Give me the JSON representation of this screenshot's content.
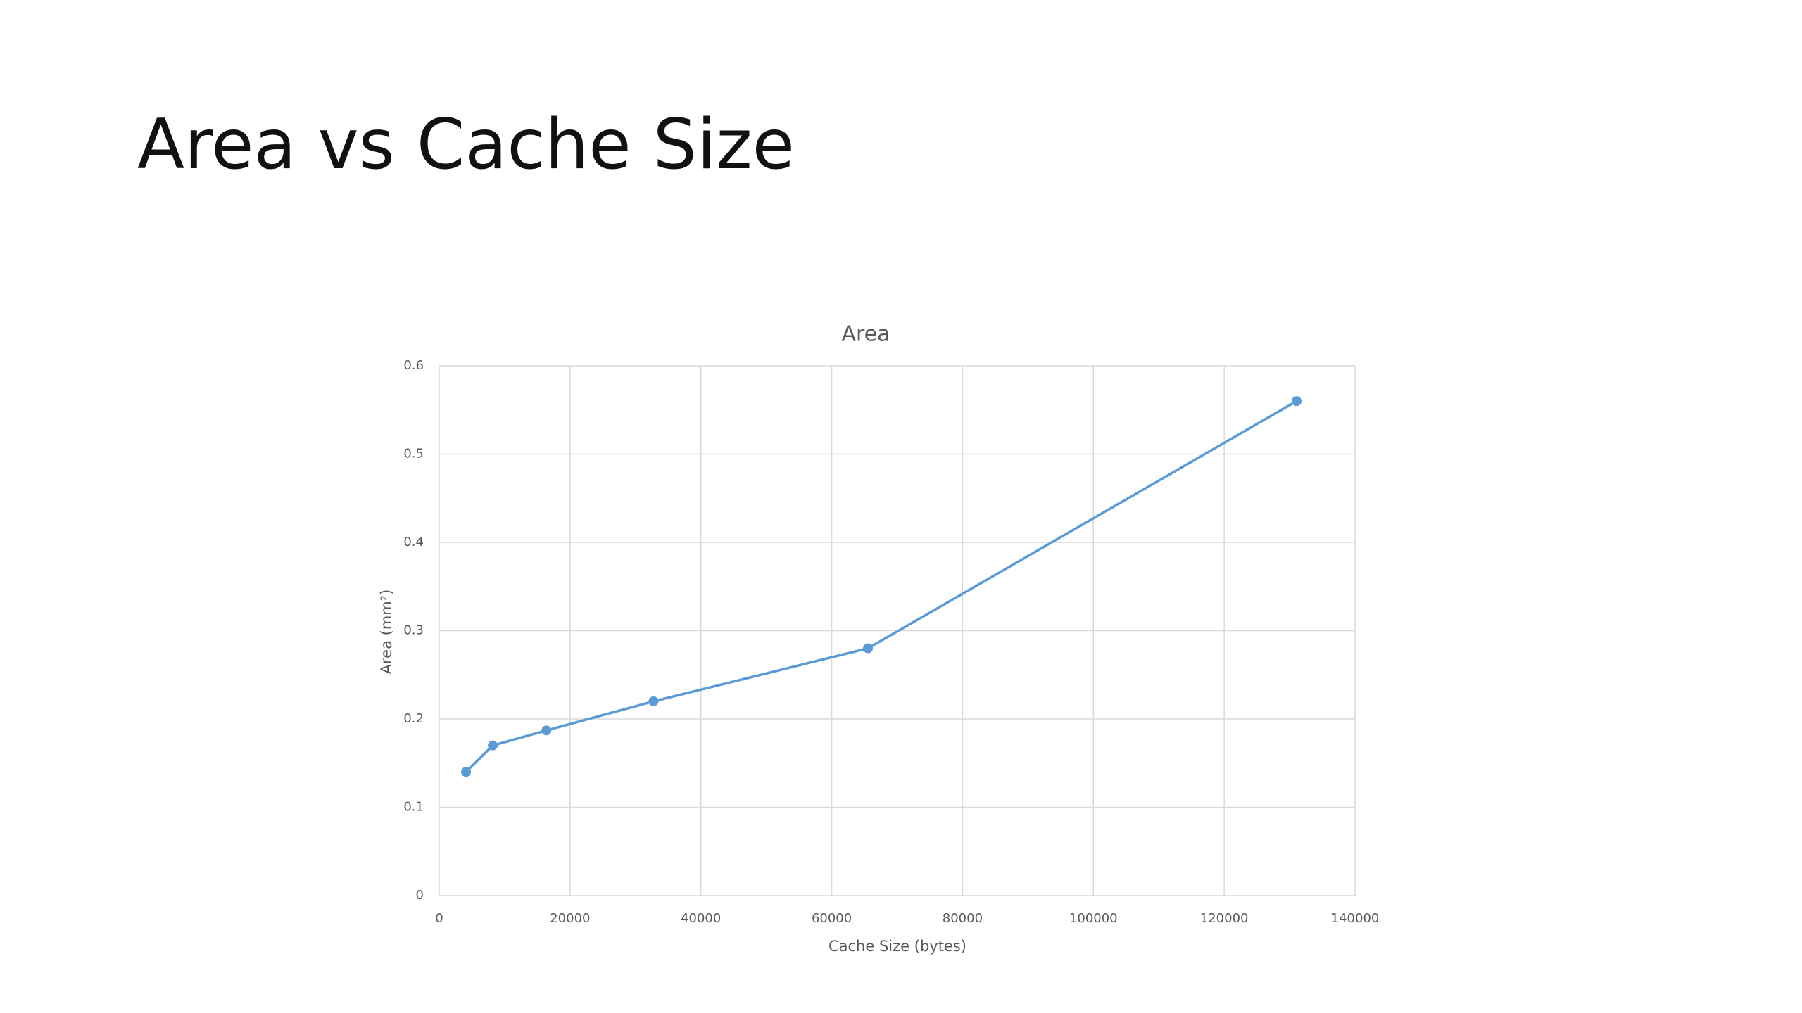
{
  "title": "Area vs Cache Size",
  "chart_data": {
    "type": "line",
    "title": "Area",
    "x_label": "Cache Size (bytes)",
    "y_label": "Area (mm²)",
    "x": [
      4096,
      8192,
      16384,
      32768,
      65536,
      131072
    ],
    "series": [
      {
        "color": "#5b9bd5",
        "values": [
          0.14,
          0.17,
          0.187,
          0.22,
          0.28,
          0.56
        ]
      }
    ],
    "xlim": [
      0,
      140000
    ],
    "xticks": [
      0,
      20000,
      40000,
      60000,
      80000,
      100000,
      120000,
      140000
    ],
    "ylim": [
      0,
      0.6
    ],
    "yticks": [
      0,
      0.1,
      0.2,
      0.3,
      0.4,
      0.5,
      0.6
    ],
    "grid": true,
    "markers": true
  }
}
